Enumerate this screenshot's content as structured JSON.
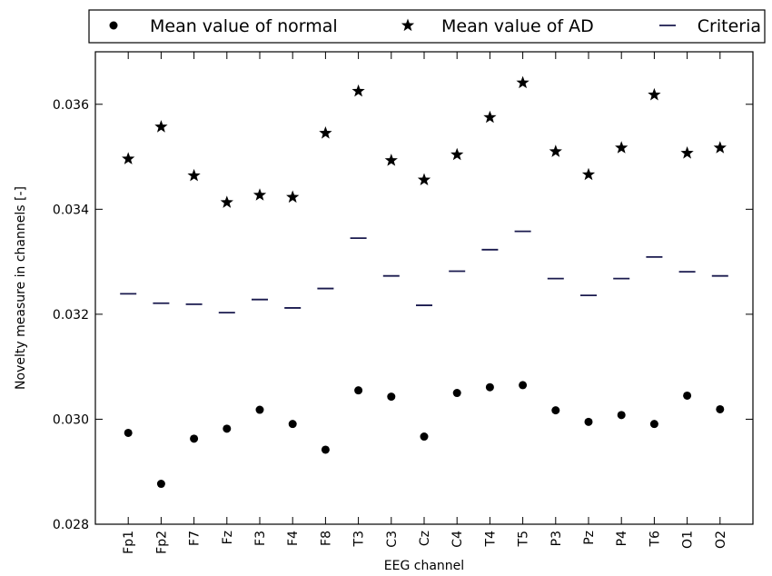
{
  "chart_data": {
    "type": "scatter",
    "title": "",
    "xlabel": "EEG channel",
    "ylabel": "Novelty measure in channels [-]",
    "ylim": [
      0.028,
      0.037
    ],
    "yticks": [
      "0.028",
      "0.030",
      "0.032",
      "0.034",
      "0.036"
    ],
    "ytick_values": [
      0.028,
      0.03,
      0.032,
      0.034,
      0.036
    ],
    "categories": [
      "Fp1",
      "Fp2",
      "F7",
      "Fz",
      "F3",
      "F4",
      "F8",
      "T3",
      "C3",
      "Cz",
      "C4",
      "T4",
      "T5",
      "P3",
      "Pz",
      "P4",
      "T6",
      "O1",
      "O2"
    ],
    "grid": false,
    "legend_position": "top",
    "series": [
      {
        "name": "Mean value of normal",
        "marker": "circle",
        "color": "#000000",
        "values": [
          0.02974,
          0.02877,
          0.02963,
          0.02982,
          0.03018,
          0.02991,
          0.02942,
          0.03055,
          0.03043,
          0.02967,
          0.0305,
          0.03061,
          0.03065,
          0.03017,
          0.02995,
          0.03008,
          0.02991,
          0.03045,
          0.03019
        ]
      },
      {
        "name": "Mean value of AD",
        "marker": "star",
        "color": "#000000",
        "values": [
          0.03496,
          0.03557,
          0.03464,
          0.03413,
          0.03427,
          0.03423,
          0.03545,
          0.03625,
          0.03493,
          0.03456,
          0.03504,
          0.03575,
          0.03641,
          0.0351,
          0.03466,
          0.03517,
          0.03618,
          0.03507,
          0.03517
        ]
      },
      {
        "name": "Criteria",
        "marker": "hline",
        "color": "#1a1a4e",
        "values": [
          0.03239,
          0.03221,
          0.03219,
          0.03203,
          0.03228,
          0.03212,
          0.03249,
          0.03345,
          0.03273,
          0.03217,
          0.03282,
          0.03323,
          0.03358,
          0.03268,
          0.03236,
          0.03268,
          0.03309,
          0.03281,
          0.03273
        ]
      }
    ]
  }
}
